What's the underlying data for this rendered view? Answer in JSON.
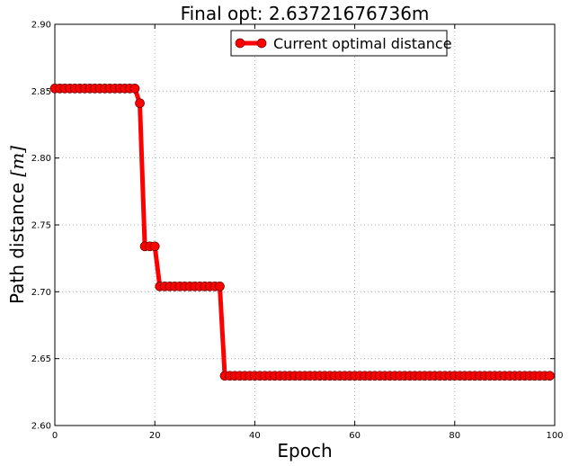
{
  "chart_data": {
    "type": "line",
    "title": "Final opt: 2.63721676736m",
    "xlabel": "Epoch",
    "ylabel_text": "Path distance ",
    "ylabel_math": "[m]",
    "xlim": [
      0,
      100
    ],
    "ylim": [
      2.6,
      2.9
    ],
    "x_ticks": [
      0,
      20,
      40,
      60,
      80,
      100
    ],
    "x_tick_labels": [
      "0",
      "20",
      "40",
      "60",
      "80",
      "100"
    ],
    "y_ticks": [
      2.6,
      2.65,
      2.7,
      2.75,
      2.8,
      2.85,
      2.9
    ],
    "y_tick_labels": [
      "2.60",
      "2.65",
      "2.70",
      "2.75",
      "2.80",
      "2.85",
      "2.90"
    ],
    "grid": true,
    "legend_position": "top-center",
    "line_color": "#ff0000",
    "marker_edge_color": "#660000",
    "series": [
      {
        "name": "Current optimal distance",
        "segments": [
          {
            "from": 0,
            "to": 16,
            "y": 2.852
          },
          {
            "from": 17,
            "to": 17,
            "y": 2.841
          },
          {
            "from": 18,
            "to": 20,
            "y": 2.734
          },
          {
            "from": 21,
            "to": 33,
            "y": 2.704
          },
          {
            "from": 34,
            "to": 99,
            "y": 2.6372
          }
        ]
      }
    ]
  }
}
